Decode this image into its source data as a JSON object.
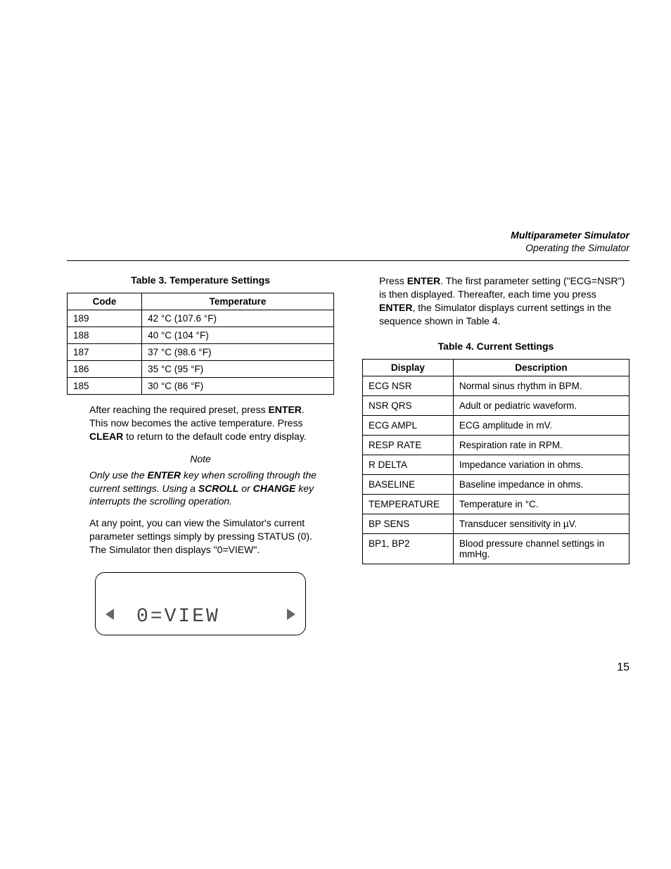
{
  "header": {
    "title": "Multiparameter Simulator",
    "subtitle": "Operating the Simulator"
  },
  "page_number": "15",
  "left": {
    "table3": {
      "caption": "Table 3. Temperature Settings",
      "columns": [
        "Code",
        "Temperature"
      ],
      "rows": [
        [
          "189",
          "42 °C (107.6 °F)"
        ],
        [
          "188",
          "40 °C (104 °F)"
        ],
        [
          "187",
          "37 °C (98.6 °F)"
        ],
        [
          "186",
          "35 °C (95 °F)"
        ],
        [
          "185",
          "30 °C (86 °F)"
        ]
      ]
    },
    "para1_a": "After reaching the required preset, press ",
    "para1_enter": "ENTER",
    "para1_b": ". This now becomes the active temperature. Press ",
    "para1_clear": "CLEAR",
    "para1_c": " to return to the default code entry display.",
    "note_label": "Note",
    "note_a": "Only use the ",
    "note_enter": "ENTER",
    "note_b": " key when scrolling through the current settings. Using a ",
    "note_scroll": "SCROLL",
    "note_c": " or ",
    "note_change": "CHANGE",
    "note_d": " key interrupts the scrolling operation.",
    "para2": "At any point, you can view the Simulator's current parameter settings simply by pressing STATUS (0). The Simulator then displays \"0=VIEW\".",
    "lcd_text": "0=VIEW"
  },
  "right": {
    "para1_a": "Press ",
    "para1_enter": "ENTER",
    "para1_b": ". The first parameter setting (\"ECG=NSR\") is then displayed. Thereafter, each time you press ",
    "para1_enter2": "ENTER",
    "para1_c": ", the Simulator displays current settings in the sequence shown in Table 4.",
    "table4": {
      "caption": "Table 4. Current Settings",
      "columns": [
        "Display",
        "Description"
      ],
      "rows": [
        [
          "ECG NSR",
          "Normal sinus rhythm in BPM."
        ],
        [
          "NSR QRS",
          "Adult or pediatric waveform."
        ],
        [
          "ECG AMPL",
          "ECG amplitude in mV."
        ],
        [
          "RESP RATE",
          "Respiration rate in RPM."
        ],
        [
          "R DELTA",
          "Impedance variation in ohms."
        ],
        [
          "BASELINE",
          "Baseline impedance in ohms."
        ],
        [
          "TEMPERATURE",
          "Temperature in °C."
        ],
        [
          "BP SENS",
          "Transducer sensitivity in µV."
        ],
        [
          "BP1, BP2",
          "Blood pressure channel settings in mmHg."
        ]
      ]
    }
  }
}
